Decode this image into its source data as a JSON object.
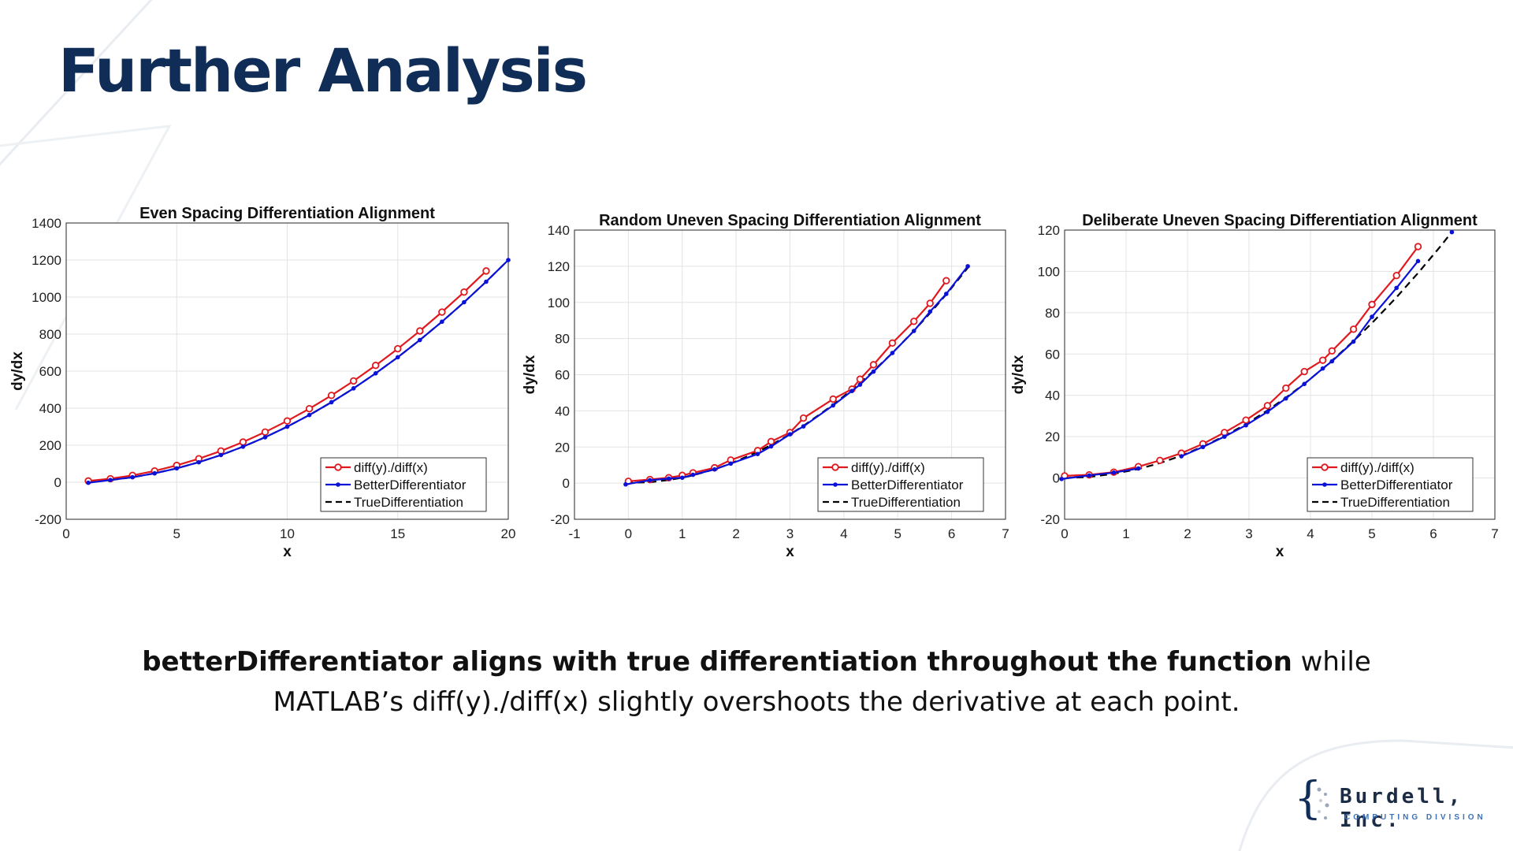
{
  "slide": {
    "title": "Further Analysis",
    "caption_bold": "betterDifferentiator aligns with true differentiation throughout the function",
    "caption_rest": " while MATLAB’s diff(y)./diff(x) slightly overshoots the derivative at each point."
  },
  "logo": {
    "name": "Burdell, Inc.",
    "subtitle": "COMPUTING DIVISION",
    "color": "#0f2d57"
  },
  "colors": {
    "diff": "#e0191f",
    "better": "#0a12d8",
    "true": "#000000"
  },
  "legend_labels": [
    "diff(y)./diff(x)",
    "BetterDifferentiator",
    "TrueDifferentiation"
  ],
  "chart_data": [
    {
      "type": "line",
      "title": "Even Spacing Differentiation Alignment",
      "xlabel": "x",
      "ylabel": "dy/dx",
      "xlim": [
        0,
        20
      ],
      "ylim": [
        -200,
        1400
      ],
      "xticks": [
        0,
        5,
        10,
        15,
        20
      ],
      "yticks": [
        -200,
        0,
        200,
        400,
        600,
        800,
        1000,
        1200,
        1400
      ],
      "grid": true,
      "legend": "bottom-right",
      "series": [
        {
          "name": "diff(y)./diff(x)",
          "x": [
            1,
            2,
            3,
            4,
            5,
            6,
            7,
            8,
            9,
            10,
            11,
            12,
            13,
            14,
            15,
            16,
            17,
            18,
            19
          ],
          "y": [
            7,
            19,
            37,
            61,
            91,
            127,
            169,
            217,
            271,
            331,
            397,
            469,
            547,
            631,
            721,
            817,
            919,
            1027,
            1141
          ]
        },
        {
          "name": "BetterDifferentiator",
          "x": [
            1,
            2,
            3,
            4,
            5,
            6,
            7,
            8,
            9,
            10,
            11,
            12,
            13,
            14,
            15,
            16,
            17,
            18,
            19,
            20
          ],
          "y": [
            -3,
            12,
            27,
            48,
            75,
            108,
            147,
            192,
            243,
            300,
            363,
            432,
            507,
            588,
            675,
            768,
            867,
            972,
            1083,
            1200
          ]
        },
        {
          "name": "TrueDifferentiation",
          "x": [
            1,
            2,
            3,
            4,
            5,
            6,
            7,
            8,
            9,
            10,
            11,
            12,
            13,
            14,
            15,
            16,
            17,
            18,
            19,
            20
          ],
          "y": [
            3,
            12,
            27,
            48,
            75,
            108,
            147,
            192,
            243,
            300,
            363,
            432,
            507,
            588,
            675,
            768,
            867,
            972,
            1083,
            1200
          ]
        }
      ]
    },
    {
      "type": "line",
      "title": "Random Uneven Spacing Differentiation Alignment",
      "xlabel": "x",
      "ylabel": "dy/dx",
      "xlim": [
        -1,
        7
      ],
      "ylim": [
        -20,
        140
      ],
      "xticks": [
        -1,
        0,
        1,
        2,
        3,
        4,
        5,
        6,
        7
      ],
      "yticks": [
        -20,
        0,
        20,
        40,
        60,
        80,
        100,
        120,
        140
      ],
      "grid": true,
      "legend": "bottom-right",
      "series": [
        {
          "name": "diff(y)./diff(x)",
          "x": [
            0,
            0.4,
            0.75,
            1.0,
            1.2,
            1.6,
            1.9,
            2.4,
            2.65,
            3.0,
            3.25,
            3.8,
            4.15,
            4.3,
            4.55,
            4.9,
            5.3,
            5.6,
            5.9
          ],
          "y": [
            1.0,
            2.0,
            3.0,
            4.3,
            5.7,
            8.5,
            12.8,
            18.0,
            23.0,
            28.0,
            36.0,
            46.5,
            52.0,
            57.5,
            65.5,
            77.5,
            89.5,
            99.5,
            112.0
          ]
        },
        {
          "name": "BetterDifferentiator",
          "x": [
            -0.05,
            0.4,
            0.75,
            1.0,
            1.2,
            1.6,
            1.9,
            2.4,
            2.65,
            3.0,
            3.25,
            3.8,
            4.15,
            4.3,
            4.55,
            4.9,
            5.3,
            5.6,
            5.9,
            6.3
          ],
          "y": [
            -0.7,
            1.6,
            2.5,
            3.0,
            4.6,
            7.6,
            10.8,
            16.1,
            20.3,
            27.0,
            31.4,
            43.0,
            51.0,
            54.5,
            61.7,
            72.0,
            84.2,
            94.9,
            104.7,
            120.0
          ]
        },
        {
          "name": "TrueDifferentiation",
          "x": [
            -0.05,
            0.4,
            0.75,
            1.0,
            1.2,
            1.6,
            1.9,
            2.4,
            2.65,
            3.0,
            3.25,
            3.8,
            4.15,
            4.3,
            4.55,
            4.9,
            5.3,
            5.6,
            5.9,
            6.3
          ],
          "y": [
            0.1,
            0.5,
            1.7,
            3.0,
            4.3,
            7.7,
            10.8,
            17.3,
            21.1,
            27.0,
            31.7,
            43.3,
            51.7,
            55.5,
            62.1,
            72.0,
            84.3,
            94.1,
            104.4,
            119.1
          ]
        }
      ]
    },
    {
      "type": "line",
      "title": "Deliberate Uneven Spacing Differentiation Alignment",
      "xlabel": "x",
      "ylabel": "dy/dx",
      "xlim": [
        0,
        7
      ],
      "ylim": [
        -20,
        120
      ],
      "xticks": [
        0,
        1,
        2,
        3,
        4,
        5,
        6,
        7
      ],
      "yticks": [
        -20,
        0,
        20,
        40,
        60,
        80,
        100,
        120
      ],
      "grid": true,
      "legend": "bottom-right",
      "series": [
        {
          "name": "diff(y)./diff(x)",
          "x": [
            0,
            0.4,
            0.8,
            1.2,
            1.55,
            1.9,
            2.25,
            2.6,
            2.95,
            3.3,
            3.6,
            3.9,
            4.2,
            4.35,
            4.7,
            5.0,
            5.4,
            5.75,
            6.1
          ],
          "y": [
            1.0,
            1.5,
            2.8,
            5.5,
            8.5,
            12.0,
            16.5,
            22.0,
            28.0,
            35.0,
            43.5,
            51.5,
            57.0,
            61.5,
            72.0,
            84.0,
            98.0,
            112.0,
            null
          ]
        },
        {
          "name": "BetterDifferentiator",
          "x": [
            -0.05,
            0.4,
            0.8,
            1.2,
            1.55,
            1.9,
            2.25,
            2.6,
            2.95,
            3.3,
            3.6,
            3.9,
            4.2,
            4.35,
            4.7,
            5.0,
            5.4,
            5.75,
            6.1,
            6.3
          ],
          "y": [
            -0.5,
            1.2,
            2.6,
            4.6,
            null,
            10.5,
            15.0,
            20.0,
            25.5,
            32.0,
            38.5,
            45.5,
            53.0,
            56.5,
            66.0,
            78.0,
            92.0,
            105.0,
            null,
            119.0
          ]
        },
        {
          "name": "TrueDifferentiation",
          "x": [
            0,
            0.4,
            0.8,
            1.2,
            1.55,
            1.9,
            2.25,
            2.6,
            2.95,
            3.3,
            3.6,
            3.9,
            4.2,
            4.35,
            4.7,
            5.0,
            5.4,
            5.75,
            6.1,
            6.3
          ],
          "y": [
            0.0,
            0.5,
            2.0,
            4.3,
            7.2,
            10.8,
            15.2,
            20.3,
            26.1,
            32.7,
            38.9,
            45.6,
            52.9,
            56.8,
            66.3,
            75.0,
            87.5,
            99.2,
            111.6,
            119.1
          ]
        }
      ]
    }
  ]
}
